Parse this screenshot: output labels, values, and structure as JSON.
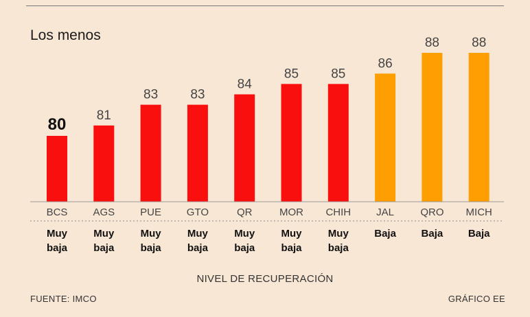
{
  "chart_data": {
    "type": "bar",
    "title": "Los menos",
    "categories": [
      "BCS",
      "AGS",
      "PUE",
      "GTO",
      "QR",
      "MOR",
      "CHIH",
      "JAL",
      "QRO",
      "MICH"
    ],
    "values": [
      80,
      81,
      83,
      83,
      84,
      85,
      85,
      86,
      88,
      88
    ],
    "levels": [
      "Muy baja",
      "Muy baja",
      "Muy baja",
      "Muy baja",
      "Muy baja",
      "Muy baja",
      "Muy baja",
      "Baja",
      "Baja",
      "Baja"
    ],
    "level_colors": {
      "Muy baja": "#fa0f0f",
      "Baja": "#ff9e00"
    },
    "highlight_index": 0,
    "xlabel": "NIVEL DE RECUPERACIÓN",
    "ylabel": "",
    "grid": false
  },
  "footer": {
    "source": "FUENTE: IMCO",
    "credit": "GRÁFICO EE"
  }
}
